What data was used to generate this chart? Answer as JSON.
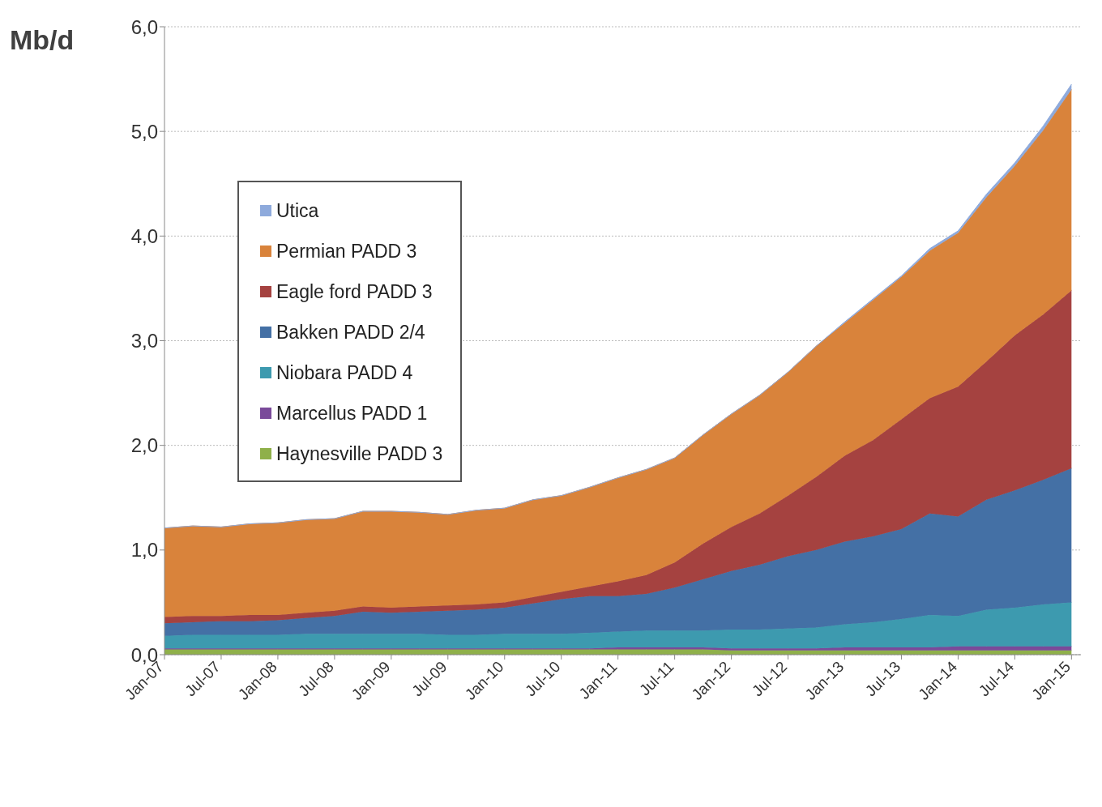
{
  "chart_data": {
    "type": "area",
    "stacked": true,
    "ylabel": "Mb/d",
    "grid": "y",
    "legend": "left",
    "x": [
      "2007-01",
      "2007-04",
      "2007-07",
      "2007-10",
      "2008-01",
      "2008-04",
      "2008-07",
      "2008-10",
      "2009-01",
      "2009-04",
      "2009-07",
      "2009-10",
      "2010-01",
      "2010-04",
      "2010-07",
      "2010-10",
      "2011-01",
      "2011-04",
      "2011-07",
      "2011-10",
      "2012-01",
      "2012-04",
      "2012-07",
      "2012-10",
      "2013-01",
      "2013-04",
      "2013-07",
      "2013-10",
      "2014-01",
      "2014-04",
      "2014-07",
      "2014-10",
      "2015-01"
    ],
    "xlim": [
      "2007-01",
      "2015-02"
    ],
    "xticks": [
      {
        "value": "2007-01",
        "label": "Jan-07"
      },
      {
        "value": "2007-07",
        "label": "Jul-07"
      },
      {
        "value": "2008-01",
        "label": "Jan-08"
      },
      {
        "value": "2008-07",
        "label": "Jul-08"
      },
      {
        "value": "2009-01",
        "label": "Jan-09"
      },
      {
        "value": "2009-07",
        "label": "Jul-09"
      },
      {
        "value": "2010-01",
        "label": "Jan-10"
      },
      {
        "value": "2010-07",
        "label": "Jul-10"
      },
      {
        "value": "2011-01",
        "label": "Jan-11"
      },
      {
        "value": "2011-07",
        "label": "Jul-11"
      },
      {
        "value": "2012-01",
        "label": "Jan-12"
      },
      {
        "value": "2012-07",
        "label": "Jul-12"
      },
      {
        "value": "2013-01",
        "label": "Jan-13"
      },
      {
        "value": "2013-07",
        "label": "Jul-13"
      },
      {
        "value": "2014-01",
        "label": "Jan-14"
      },
      {
        "value": "2014-07",
        "label": "Jul-14"
      },
      {
        "value": "2015-01",
        "label": "Jan-15"
      }
    ],
    "ylim": [
      0,
      6
    ],
    "yticks": [
      {
        "value": 0,
        "label": "0,0"
      },
      {
        "value": 1,
        "label": "1,0"
      },
      {
        "value": 2,
        "label": "2,0"
      },
      {
        "value": 3,
        "label": "3,0"
      },
      {
        "value": 4,
        "label": "4,0"
      },
      {
        "value": 5,
        "label": "5,0"
      },
      {
        "value": 6,
        "label": "6,0"
      }
    ],
    "series": [
      {
        "name": "Haynesville PADD 3",
        "color": "#8fb04a",
        "values": [
          0.05,
          0.05,
          0.05,
          0.05,
          0.05,
          0.05,
          0.05,
          0.05,
          0.05,
          0.05,
          0.05,
          0.05,
          0.05,
          0.05,
          0.05,
          0.05,
          0.05,
          0.05,
          0.05,
          0.05,
          0.04,
          0.04,
          0.04,
          0.04,
          0.04,
          0.04,
          0.04,
          0.04,
          0.04,
          0.04,
          0.04,
          0.04,
          0.04
        ]
      },
      {
        "name": "Marcellus PADD 1",
        "color": "#7a4a9a",
        "values": [
          0.01,
          0.01,
          0.01,
          0.01,
          0.01,
          0.01,
          0.01,
          0.01,
          0.01,
          0.01,
          0.01,
          0.01,
          0.01,
          0.01,
          0.01,
          0.01,
          0.02,
          0.02,
          0.02,
          0.02,
          0.02,
          0.02,
          0.02,
          0.02,
          0.03,
          0.03,
          0.03,
          0.03,
          0.04,
          0.04,
          0.04,
          0.04,
          0.04
        ]
      },
      {
        "name": "Niobara PADD 4",
        "color": "#3d9aaf",
        "values": [
          0.12,
          0.13,
          0.13,
          0.13,
          0.13,
          0.14,
          0.14,
          0.14,
          0.14,
          0.14,
          0.13,
          0.13,
          0.14,
          0.14,
          0.14,
          0.15,
          0.15,
          0.16,
          0.16,
          0.16,
          0.18,
          0.18,
          0.19,
          0.2,
          0.22,
          0.24,
          0.27,
          0.31,
          0.29,
          0.35,
          0.37,
          0.4,
          0.42
        ]
      },
      {
        "name": "Bakken PADD 2/4",
        "color": "#4470a5",
        "values": [
          0.12,
          0.12,
          0.13,
          0.13,
          0.14,
          0.15,
          0.17,
          0.21,
          0.2,
          0.21,
          0.23,
          0.24,
          0.25,
          0.29,
          0.33,
          0.35,
          0.34,
          0.35,
          0.41,
          0.49,
          0.56,
          0.62,
          0.69,
          0.74,
          0.79,
          0.82,
          0.86,
          0.97,
          0.95,
          1.05,
          1.12,
          1.19,
          1.28
        ]
      },
      {
        "name": "Eagle ford PADD 3",
        "color": "#a54240",
        "values": [
          0.06,
          0.06,
          0.05,
          0.06,
          0.05,
          0.05,
          0.05,
          0.05,
          0.05,
          0.05,
          0.05,
          0.05,
          0.05,
          0.06,
          0.07,
          0.09,
          0.14,
          0.18,
          0.24,
          0.34,
          0.42,
          0.49,
          0.58,
          0.7,
          0.82,
          0.92,
          1.05,
          1.1,
          1.24,
          1.32,
          1.48,
          1.58,
          1.7
        ]
      },
      {
        "name": "Permian PADD 3",
        "color": "#d9833b",
        "values": [
          0.85,
          0.86,
          0.85,
          0.87,
          0.88,
          0.89,
          0.88,
          0.91,
          0.92,
          0.9,
          0.87,
          0.9,
          0.9,
          0.93,
          0.92,
          0.95,
          0.99,
          1.01,
          1.0,
          1.04,
          1.08,
          1.13,
          1.18,
          1.25,
          1.27,
          1.34,
          1.36,
          1.41,
          1.47,
          1.57,
          1.62,
          1.76,
          1.92
        ]
      },
      {
        "name": "Utica",
        "color": "#8eaadc",
        "values": [
          0,
          0,
          0,
          0,
          0,
          0,
          0,
          0,
          0,
          0,
          0,
          0,
          0,
          0,
          0,
          0,
          0,
          0,
          0,
          0,
          0,
          0,
          0,
          0,
          0.01,
          0.01,
          0.01,
          0.02,
          0.02,
          0.03,
          0.03,
          0.04,
          0.05
        ]
      }
    ]
  }
}
